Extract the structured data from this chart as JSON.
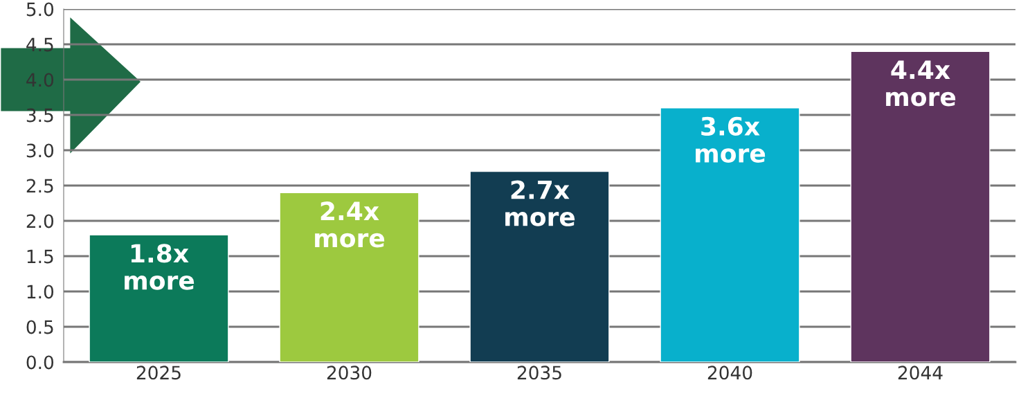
{
  "chart_data": {
    "type": "bar",
    "categories": [
      "2025",
      "2030",
      "2035",
      "2040",
      "2044"
    ],
    "values": [
      1.8,
      2.4,
      2.7,
      3.6,
      4.4
    ],
    "colors": [
      "#0c7a5a",
      "#9dc93f",
      "#123d52",
      "#08b0cc",
      "#5e345e"
    ],
    "value_labels": [
      "1.8x\nmore",
      "2.4x\nmore",
      "2.7x\nmore",
      "3.6x\nmore",
      "4.4x\nmore"
    ],
    "ylim": [
      0,
      5
    ],
    "yticks": [
      "0.0",
      "0.5",
      "1.0",
      "1.5",
      "2.0",
      "2.5",
      "3.0",
      "3.5",
      "4.0",
      "4.5",
      "5.0"
    ],
    "grid": "y"
  }
}
